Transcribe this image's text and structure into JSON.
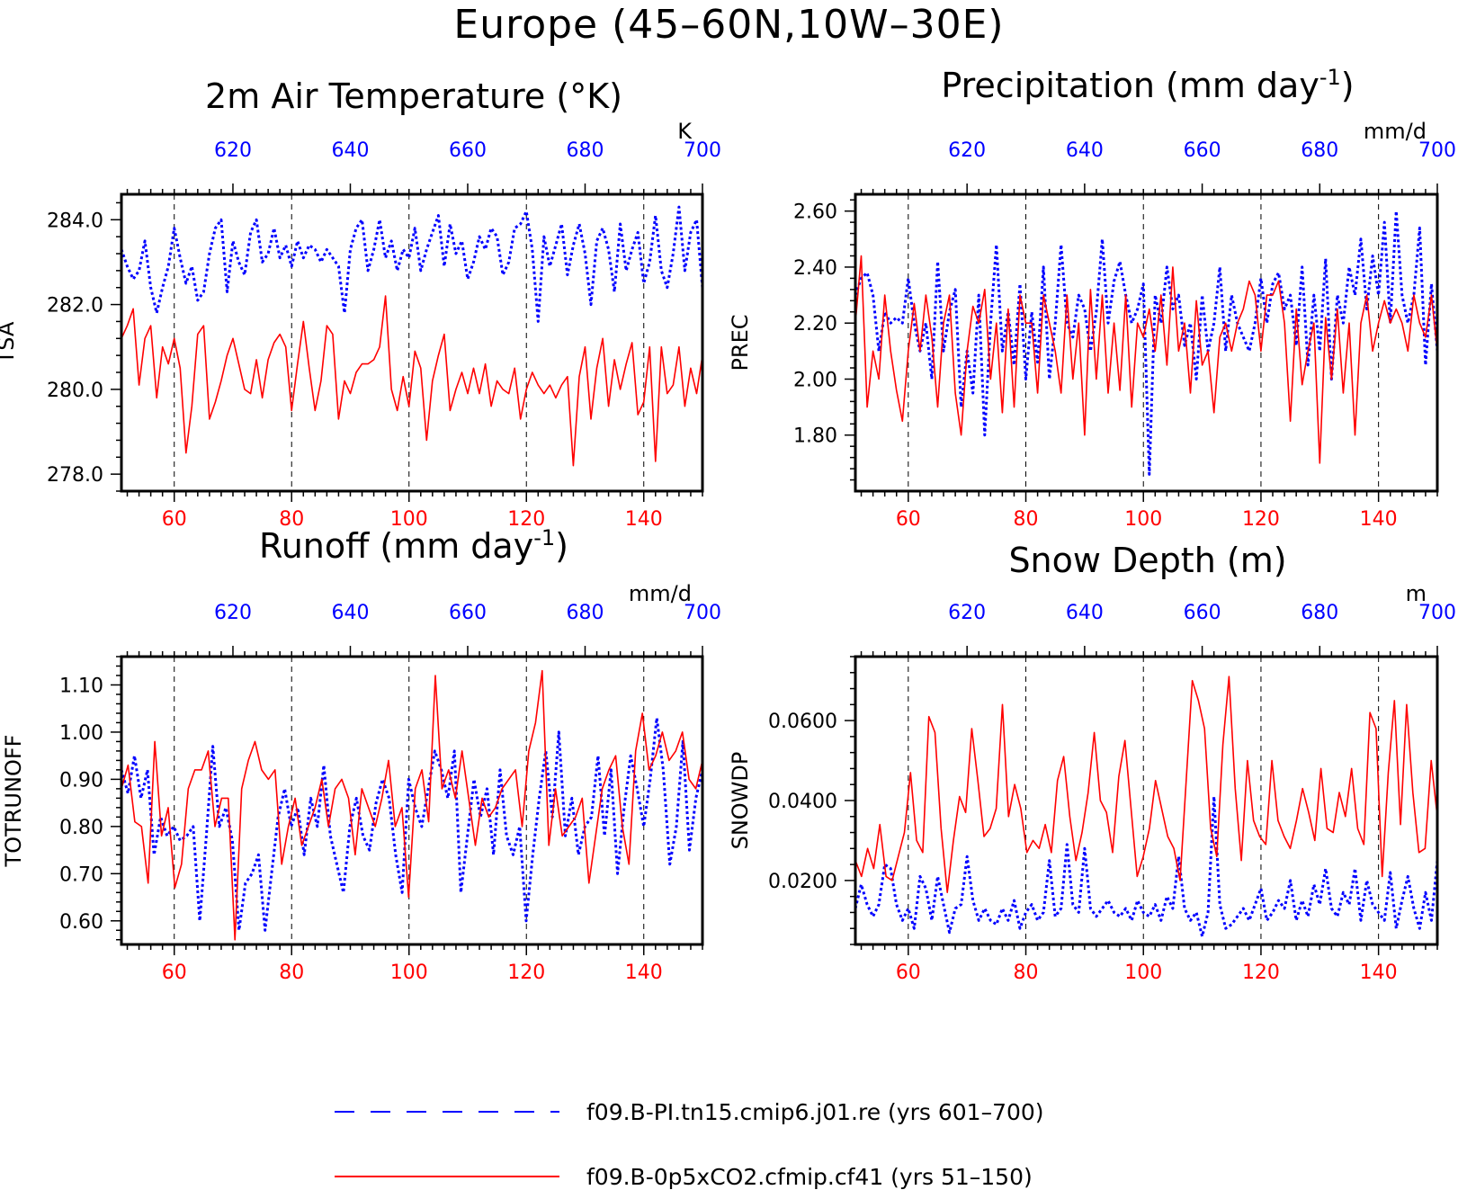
{
  "figure": {
    "title": "Europe (45–60N,10W–30E)",
    "colors": {
      "control": "#0000ff",
      "experiment": "#ff0000",
      "axis": "#000000"
    }
  },
  "legend": [
    {
      "label": "f09.B-PI.tn15.cmip6.j01.re (yrs 601–700)",
      "color": "#0000ff",
      "style": "dashed"
    },
    {
      "label": "f09.B-0p5xCO2.cfmip.cf41 (yrs 51–150)",
      "color": "#ff0000",
      "style": "solid"
    }
  ],
  "chart_data": [
    {
      "type": "line",
      "title": "2m Air Temperature (°K)",
      "ylabel": "TSA",
      "unit": "K",
      "ylim": [
        277.6,
        284.6
      ],
      "yticks": [
        278.0,
        280.0,
        282.0,
        284.0
      ],
      "ytick_labels": [
        "278.0",
        "280.0",
        "282.0",
        "284.0"
      ],
      "xlim": [
        51,
        150
      ],
      "xticks": [
        60,
        80,
        100,
        120,
        140
      ],
      "top_xlim": [
        601,
        700
      ],
      "top_xticks": [
        620,
        640,
        660,
        680,
        700
      ],
      "series": [
        {
          "values": [
            283.3,
            282.9,
            282.6,
            282.8,
            283.5,
            282.4,
            281.8,
            282.4,
            282.9,
            283.8,
            283.1,
            282.5,
            282.9,
            282.1,
            282.3,
            283.2,
            283.8,
            284.0,
            282.3,
            283.5,
            283.0,
            282.7,
            283.7,
            284.0,
            283.0,
            283.2,
            283.8,
            283.1,
            283.4,
            282.9,
            283.5,
            283.1,
            283.4,
            283.3,
            283.0,
            283.3,
            283.1,
            282.9,
            281.8,
            283.3,
            283.8,
            284.0,
            282.8,
            283.3,
            284.0,
            283.1,
            283.5,
            282.8,
            283.3,
            283.1,
            283.8,
            282.8,
            283.3,
            283.7,
            284.1,
            282.9,
            283.9,
            283.2,
            283.5,
            282.6,
            283.0,
            283.6,
            283.3,
            283.8,
            283.6,
            282.7,
            283.0,
            283.8,
            283.9,
            284.2,
            283.3,
            281.6,
            283.6,
            282.9,
            283.4,
            283.9,
            282.7,
            283.4,
            283.9,
            283.2,
            282.0,
            283.5,
            283.8,
            283.3,
            282.3,
            283.9,
            282.8,
            283.3,
            283.7,
            282.5,
            283.0,
            284.1,
            282.8,
            282.4,
            283.2,
            284.3,
            282.8,
            283.7,
            284.0,
            282.4
          ]
        },
        {
          "values": [
            281.2,
            281.5,
            281.9,
            280.1,
            281.2,
            281.5,
            279.8,
            281.0,
            280.6,
            281.2,
            280.5,
            278.5,
            279.6,
            281.3,
            281.5,
            279.3,
            279.7,
            280.2,
            280.8,
            281.2,
            280.6,
            280.0,
            279.9,
            280.7,
            279.8,
            280.7,
            281.1,
            281.3,
            281.0,
            279.5,
            280.6,
            281.6,
            280.5,
            279.5,
            280.2,
            281.5,
            281.3,
            279.3,
            280.2,
            279.9,
            280.4,
            280.6,
            280.6,
            280.7,
            281.0,
            282.2,
            280.0,
            279.5,
            280.3,
            279.6,
            280.9,
            280.5,
            278.8,
            280.2,
            280.8,
            281.3,
            279.5,
            280.0,
            280.4,
            279.9,
            280.5,
            279.9,
            280.6,
            279.6,
            280.2,
            280.0,
            279.9,
            280.5,
            279.3,
            280.0,
            280.4,
            280.1,
            279.9,
            280.1,
            279.8,
            280.1,
            280.3,
            278.2,
            280.3,
            281.0,
            279.3,
            280.5,
            281.2,
            279.6,
            280.7,
            280.0,
            280.6,
            281.1,
            279.4,
            279.7,
            281.0,
            278.3,
            281.0,
            279.9,
            280.1,
            281.0,
            279.6,
            280.5,
            279.9,
            280.8
          ]
        }
      ]
    },
    {
      "type": "line",
      "title": "Precipitation (mm day⁻¹)",
      "ylabel": "PREC",
      "unit": "mm/d",
      "ylim": [
        1.6,
        2.66
      ],
      "yticks": [
        1.8,
        2.0,
        2.2,
        2.4,
        2.6
      ],
      "ytick_labels": [
        "1.80",
        "2.00",
        "2.20",
        "2.40",
        "2.60"
      ],
      "xlim": [
        51,
        150
      ],
      "xticks": [
        60,
        80,
        100,
        120,
        140
      ],
      "top_xlim": [
        601,
        700
      ],
      "top_xticks": [
        620,
        640,
        660,
        680,
        700
      ],
      "series": [
        {
          "values": [
            2.3,
            2.36,
            2.38,
            2.3,
            2.1,
            2.24,
            2.2,
            2.22,
            2.2,
            2.36,
            2.2,
            2.1,
            2.2,
            2.0,
            2.42,
            2.1,
            2.24,
            2.32,
            1.9,
            2.1,
            1.95,
            2.3,
            1.8,
            2.2,
            2.48,
            2.1,
            2.24,
            2.05,
            2.34,
            2.0,
            2.24,
            2.06,
            2.4,
            2.0,
            2.2,
            2.48,
            2.2,
            2.15,
            2.3,
            2.25,
            2.1,
            2.24,
            2.5,
            2.2,
            2.35,
            2.42,
            2.3,
            2.2,
            2.25,
            2.34,
            1.66,
            2.3,
            2.2,
            2.4,
            2.25,
            2.3,
            2.12,
            2.2,
            2.0,
            2.3,
            2.1,
            2.2,
            2.4,
            2.1,
            2.3,
            2.2,
            2.15,
            2.1,
            2.2,
            2.36,
            2.2,
            2.34,
            2.38,
            2.25,
            2.3,
            2.12,
            2.4,
            2.05,
            2.3,
            2.1,
            2.43,
            2.0,
            2.3,
            2.2,
            2.4,
            2.3,
            2.5,
            2.25,
            2.44,
            2.3,
            2.56,
            2.2,
            2.6,
            2.3,
            2.2,
            2.3,
            2.54,
            2.05,
            2.34,
            2.1
          ]
        },
        {
          "values": [
            2.2,
            2.44,
            1.9,
            2.1,
            2.0,
            2.3,
            2.1,
            1.96,
            1.85,
            2.1,
            2.27,
            2.1,
            2.3,
            2.15,
            1.9,
            2.2,
            2.3,
            1.95,
            1.8,
            2.1,
            2.26,
            2.2,
            2.32,
            2.0,
            2.2,
            1.88,
            2.25,
            1.9,
            2.3,
            2.2,
            2.2,
            1.95,
            2.3,
            2.2,
            2.1,
            1.95,
            2.3,
            2.0,
            2.2,
            1.8,
            2.32,
            2.0,
            2.3,
            1.95,
            2.2,
            1.96,
            2.3,
            1.9,
            2.2,
            2.15,
            2.25,
            2.1,
            2.3,
            2.05,
            2.4,
            2.1,
            2.2,
            1.95,
            2.28,
            2.05,
            2.1,
            1.88,
            2.15,
            2.2,
            2.1,
            2.2,
            2.25,
            2.35,
            2.3,
            2.1,
            2.3,
            2.3,
            2.35,
            2.2,
            1.85,
            2.25,
            1.98,
            2.1,
            2.2,
            1.7,
            2.22,
            2.0,
            2.25,
            1.95,
            2.2,
            1.8,
            2.2,
            2.3,
            2.1,
            2.2,
            2.28,
            2.2,
            2.25,
            2.2,
            2.1,
            2.3,
            2.2,
            2.15,
            2.3,
            2.1
          ]
        }
      ]
    },
    {
      "type": "line",
      "title": "Runoff (mm day⁻¹)",
      "ylabel": "TOTRUNOFF",
      "unit": "mm/d",
      "ylim": [
        0.55,
        1.16
      ],
      "yticks": [
        0.6,
        0.7,
        0.8,
        0.9,
        1.0,
        1.1
      ],
      "ytick_labels": [
        "0.60",
        "0.70",
        "0.80",
        "0.90",
        "1.00",
        "1.10"
      ],
      "xlim": [
        51,
        150
      ],
      "xticks": [
        60,
        80,
        100,
        120,
        140
      ],
      "top_xlim": [
        601,
        700
      ],
      "top_xticks": [
        620,
        640,
        660,
        680,
        700
      ],
      "series": [
        {
          "values": [
            0.92,
            0.87,
            0.95,
            0.86,
            0.92,
            0.74,
            0.82,
            0.78,
            0.8,
            0.77,
            0.78,
            0.8,
            0.6,
            0.78,
            0.97,
            0.8,
            0.84,
            0.77,
            0.58,
            0.68,
            0.7,
            0.74,
            0.58,
            0.7,
            0.82,
            0.88,
            0.8,
            0.84,
            0.74,
            0.86,
            0.8,
            0.93,
            0.78,
            0.72,
            0.66,
            0.8,
            0.86,
            0.78,
            0.75,
            0.85,
            0.9,
            0.86,
            0.74,
            0.66,
            0.9,
            0.84,
            0.8,
            0.88,
            0.96,
            0.92,
            0.86,
            0.96,
            0.66,
            0.78,
            0.9,
            0.82,
            0.88,
            0.74,
            0.92,
            0.78,
            0.74,
            0.8,
            0.6,
            0.74,
            0.86,
            0.96,
            0.82,
            1.0,
            0.78,
            0.86,
            0.74,
            0.8,
            0.82,
            0.95,
            0.78,
            0.92,
            0.7,
            0.84,
            0.95,
            0.88,
            0.8,
            0.9,
            1.03,
            0.92,
            0.72,
            0.8,
            0.98,
            0.75,
            0.86,
            0.92
          ]
        },
        {
          "values": [
            0.88,
            0.93,
            0.81,
            0.8,
            0.68,
            0.98,
            0.78,
            0.84,
            0.67,
            0.72,
            0.88,
            0.92,
            0.92,
            0.96,
            0.8,
            0.86,
            0.86,
            0.56,
            0.88,
            0.94,
            0.98,
            0.92,
            0.9,
            0.92,
            0.72,
            0.8,
            0.86,
            0.76,
            0.8,
            0.84,
            0.9,
            0.8,
            0.88,
            0.9,
            0.86,
            0.74,
            0.88,
            0.84,
            0.8,
            0.86,
            0.94,
            0.8,
            0.84,
            0.65,
            0.88,
            0.92,
            0.81,
            1.12,
            0.88,
            0.92,
            0.86,
            0.96,
            0.86,
            0.76,
            0.86,
            0.82,
            0.84,
            0.88,
            0.9,
            0.92,
            0.8,
            0.96,
            1.02,
            1.13,
            0.76,
            0.88,
            0.78,
            0.8,
            0.82,
            0.86,
            0.68,
            0.78,
            0.88,
            0.92,
            0.95,
            0.8,
            0.72,
            0.96,
            1.04,
            0.92,
            0.95,
            1.0,
            0.94,
            0.96,
            1.0,
            0.9,
            0.88,
            0.94
          ]
        }
      ]
    },
    {
      "type": "line",
      "title": "Snow Depth (m)",
      "ylabel": "SNOWDP",
      "unit": "m",
      "ylim": [
        0.004,
        0.076
      ],
      "yticks": [
        0.02,
        0.04,
        0.06
      ],
      "ytick_labels": [
        "0.0200",
        "0.0400",
        "0.0600"
      ],
      "xlim": [
        51,
        150
      ],
      "xticks": [
        60,
        80,
        100,
        120,
        140
      ],
      "top_xlim": [
        601,
        700
      ],
      "top_xticks": [
        620,
        640,
        660,
        680,
        700
      ],
      "series": [
        {
          "values": [
            0.013,
            0.019,
            0.014,
            0.011,
            0.014,
            0.024,
            0.023,
            0.014,
            0.01,
            0.013,
            0.008,
            0.021,
            0.018,
            0.01,
            0.021,
            0.014,
            0.007,
            0.013,
            0.014,
            0.026,
            0.015,
            0.01,
            0.013,
            0.01,
            0.009,
            0.013,
            0.01,
            0.015,
            0.008,
            0.012,
            0.014,
            0.01,
            0.012,
            0.025,
            0.011,
            0.013,
            0.029,
            0.014,
            0.012,
            0.028,
            0.013,
            0.011,
            0.013,
            0.015,
            0.012,
            0.011,
            0.013,
            0.01,
            0.015,
            0.012,
            0.011,
            0.014,
            0.01,
            0.016,
            0.013,
            0.026,
            0.013,
            0.01,
            0.012,
            0.006,
            0.012,
            0.041,
            0.014,
            0.008,
            0.009,
            0.011,
            0.013,
            0.01,
            0.014,
            0.018,
            0.01,
            0.012,
            0.015,
            0.013,
            0.02,
            0.01,
            0.015,
            0.011,
            0.019,
            0.014,
            0.023,
            0.013,
            0.011,
            0.017,
            0.014,
            0.023,
            0.01,
            0.02,
            0.014,
            0.012,
            0.01,
            0.022,
            0.008,
            0.015,
            0.021,
            0.013,
            0.008,
            0.017,
            0.01,
            0.025
          ]
        },
        {
          "values": [
            0.025,
            0.021,
            0.028,
            0.023,
            0.034,
            0.021,
            0.02,
            0.026,
            0.032,
            0.047,
            0.03,
            0.027,
            0.061,
            0.057,
            0.033,
            0.017,
            0.03,
            0.041,
            0.037,
            0.058,
            0.045,
            0.031,
            0.033,
            0.038,
            0.064,
            0.036,
            0.044,
            0.038,
            0.027,
            0.03,
            0.028,
            0.034,
            0.027,
            0.045,
            0.051,
            0.036,
            0.025,
            0.032,
            0.042,
            0.057,
            0.04,
            0.037,
            0.027,
            0.046,
            0.055,
            0.038,
            0.021,
            0.026,
            0.033,
            0.045,
            0.038,
            0.031,
            0.028,
            0.02,
            0.045,
            0.07,
            0.065,
            0.058,
            0.033,
            0.026,
            0.054,
            0.071,
            0.043,
            0.025,
            0.05,
            0.035,
            0.031,
            0.029,
            0.05,
            0.035,
            0.031,
            0.028,
            0.035,
            0.043,
            0.037,
            0.03,
            0.048,
            0.033,
            0.032,
            0.042,
            0.036,
            0.048,
            0.033,
            0.029,
            0.062,
            0.058,
            0.021,
            0.047,
            0.065,
            0.034,
            0.064,
            0.042,
            0.027,
            0.028,
            0.05,
            0.036
          ]
        }
      ]
    }
  ]
}
